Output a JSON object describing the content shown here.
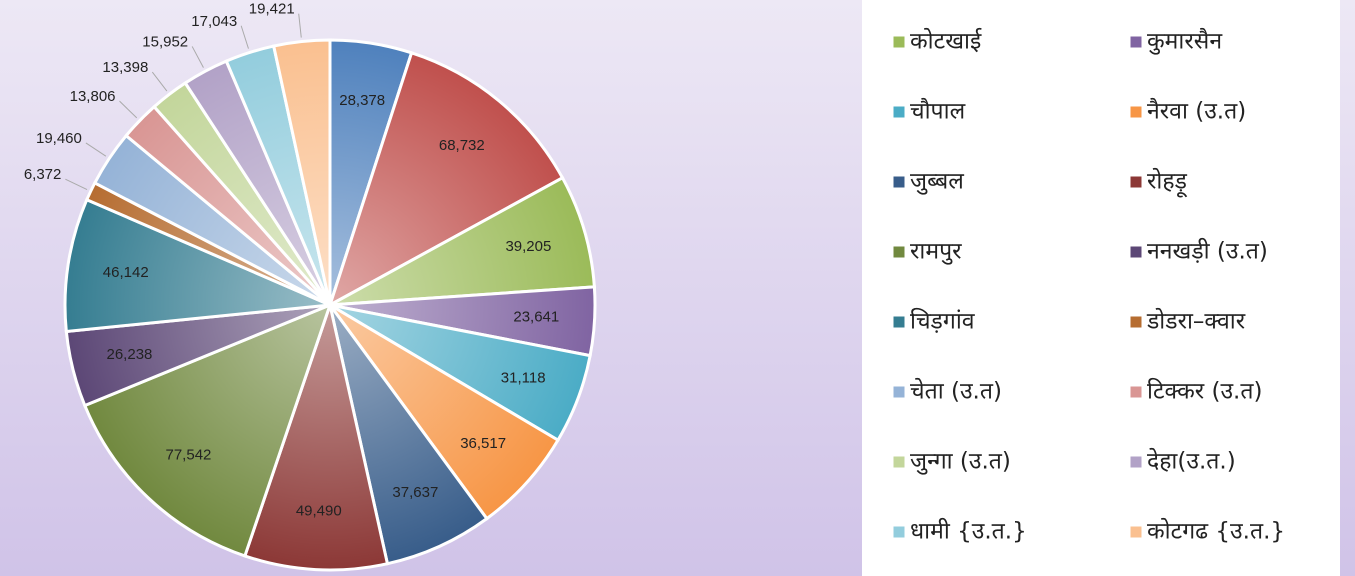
{
  "chart_data": {
    "type": "pie",
    "categories": [
      null,
      null,
      "कोटखाई",
      "कुमारसैन",
      "चौपाल",
      "नैरवा  (उ.त)",
      "जुब्बल",
      "रोहड़ू",
      "रामपुर",
      "ननखड़ी  (उ.त)",
      "चिड़गांव",
      "डोडरा–क्वार",
      "चेता  (उ.त)",
      "टिक्कर  (उ.त)",
      "जुन्गा  (उ.त)",
      "देहा(उ.त.)",
      "धामी  {उ.त.}",
      "कोटगढ  {उ.त.}"
    ],
    "values": [
      28378,
      68732,
      39205,
      23641,
      31118,
      36517,
      37637,
      49490,
      77542,
      26238,
      46142,
      6372,
      19460,
      13806,
      13398,
      15952,
      17043,
      19421
    ],
    "value_labels": [
      "28,378",
      "68,732",
      "39,205",
      "23,641",
      "31,118",
      "36,517",
      "37,637",
      "49,490",
      "77,542",
      "26,238",
      "46,142",
      "6,372",
      "19,460",
      "13,806",
      "13,398",
      "15,952",
      "17,043",
      "19,421"
    ],
    "colors": [
      "#4f81bd",
      "#c0504d",
      "#9bbb59",
      "#8064a2",
      "#4bacc6",
      "#f79646",
      "#385d8a",
      "#8c3836",
      "#71893f",
      "#5c4776",
      "#357d91",
      "#b66d31",
      "#95b3d7",
      "#d99694",
      "#c3d69b",
      "#b2a2c7",
      "#93cddd",
      "#fac090"
    ],
    "legend": "right"
  }
}
